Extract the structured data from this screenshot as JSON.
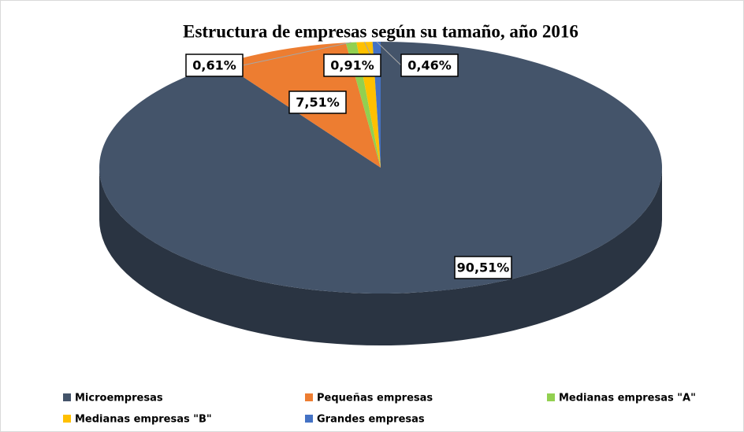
{
  "chart_data": {
    "type": "pie3d",
    "title": "Estructura de empresas según su tamaño, año 2016",
    "series": [
      {
        "name": "Microempresas",
        "color": "#44546a",
        "values": [
          90.51
        ],
        "value_labels": [
          "90,51%"
        ]
      },
      {
        "name": "Pequeñas empresas",
        "color": "#ed7d31",
        "values": [
          7.51
        ],
        "value_labels": [
          "7,51%"
        ]
      },
      {
        "name": "Medianas empresas \"A\"",
        "color": "#92d050",
        "values": [
          0.61
        ],
        "value_labels": [
          "0,61%"
        ]
      },
      {
        "name": "Medianas empresas \"B\"",
        "color": "#ffc000",
        "values": [
          0.91
        ],
        "value_labels": [
          "0,91%"
        ]
      },
      {
        "name": "Grandes empresas",
        "color": "#4472c4",
        "values": [
          0.46
        ],
        "value_labels": [
          "0,46%"
        ]
      }
    ],
    "legend": "bottom"
  }
}
